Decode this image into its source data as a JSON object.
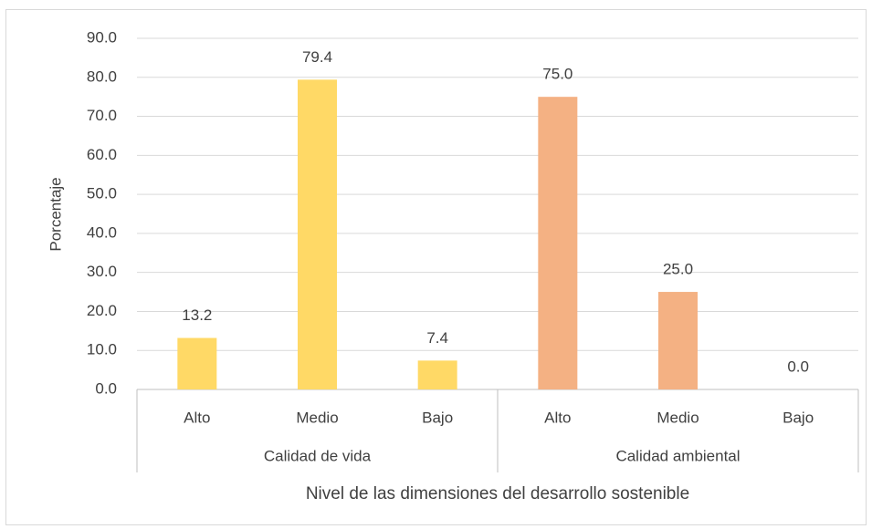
{
  "chart_data": {
    "type": "bar",
    "xlabel": "Nivel de las dimensiones del desarrollo sostenible",
    "ylabel": "Porcentaje",
    "categories": [
      "Alto",
      "Medio",
      "Bajo"
    ],
    "series": [
      {
        "name": "Calidad de vida",
        "color": "#ffd966",
        "values": [
          13.2,
          79.4,
          7.4
        ]
      },
      {
        "name": "Calidad ambiental",
        "color": "#f4b183",
        "values": [
          75,
          25,
          0
        ],
        "value_labels": [
          "75.0",
          "25.0",
          "0.0"
        ]
      }
    ],
    "ylim": [
      0,
      90
    ],
    "yticks": [
      {
        "value": 0,
        "label": "0.0"
      },
      {
        "value": 10,
        "label": "10.0"
      },
      {
        "value": 20,
        "label": "20.0"
      },
      {
        "value": 30,
        "label": "30.0"
      },
      {
        "value": 40,
        "label": "40.0"
      },
      {
        "value": 50,
        "label": "50.0"
      },
      {
        "value": 60,
        "label": "60.0"
      },
      {
        "value": 70,
        "label": "70.0"
      },
      {
        "value": 80,
        "label": "80.0"
      },
      {
        "value": 90,
        "label": "90.0"
      }
    ],
    "grid": true
  }
}
